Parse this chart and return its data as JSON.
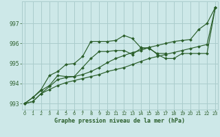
{
  "title": "Graphe pression niveau de la mer (hPa)",
  "background_color": "#cde8e8",
  "grid_color": "#aacccc",
  "line_color": "#2a5e2a",
  "marker_color": "#2a5e2a",
  "xlim": [
    -0.3,
    23.3
  ],
  "ylim": [
    992.7,
    998.1
  ],
  "yticks": [
    993,
    994,
    995,
    996,
    997
  ],
  "xticks": [
    0,
    1,
    2,
    3,
    4,
    5,
    6,
    7,
    8,
    9,
    10,
    11,
    12,
    13,
    14,
    15,
    16,
    17,
    18,
    19,
    20,
    21,
    22,
    23
  ],
  "series": [
    [
      993.0,
      993.3,
      993.7,
      994.4,
      994.6,
      994.95,
      995.0,
      995.35,
      996.1,
      996.1,
      996.1,
      996.15,
      996.4,
      996.25,
      995.8,
      995.75,
      995.5,
      995.5,
      null,
      null,
      null,
      null,
      null,
      997.8
    ],
    [
      993.0,
      993.3,
      993.65,
      993.9,
      994.4,
      994.35,
      994.35,
      994.8,
      995.25,
      995.6,
      995.6,
      995.65,
      995.65,
      995.45,
      995.75,
      995.8,
      995.45,
      995.25,
      995.25,
      995.5,
      995.5,
      995.5,
      995.5,
      997.8
    ],
    [
      993.0,
      993.1,
      993.5,
      993.85,
      994.2,
      994.3,
      994.35,
      994.45,
      994.6,
      994.8,
      995.05,
      995.25,
      995.4,
      995.55,
      995.65,
      995.8,
      995.9,
      996.0,
      996.1,
      996.15,
      996.2,
      996.7,
      997.0,
      997.8
    ],
    [
      993.0,
      993.1,
      993.5,
      993.7,
      993.9,
      994.05,
      994.15,
      994.25,
      994.35,
      994.45,
      994.6,
      994.7,
      994.8,
      994.95,
      995.1,
      995.25,
      995.35,
      995.45,
      995.55,
      995.65,
      995.75,
      995.85,
      995.95,
      997.8
    ]
  ],
  "markers_x": [
    [
      0,
      1,
      2,
      3,
      4,
      5,
      6,
      7,
      8,
      9,
      10,
      11,
      12,
      13,
      14,
      15,
      16,
      17
    ],
    [
      0,
      1,
      2,
      3,
      4,
      5,
      6,
      7,
      8,
      9,
      10,
      11,
      12,
      13,
      14,
      15,
      16,
      17,
      18,
      19,
      20,
      21,
      22,
      23
    ],
    [
      0,
      1,
      2,
      3,
      4,
      5,
      6,
      7,
      8,
      9,
      10,
      11,
      12,
      13,
      14,
      15,
      16,
      17,
      18,
      19,
      20,
      21,
      22,
      23
    ],
    [
      0,
      1,
      2,
      3,
      4,
      5,
      6,
      7,
      8,
      9,
      10,
      11,
      12,
      13,
      14,
      15,
      16,
      17,
      18,
      19,
      20,
      21,
      22,
      23
    ]
  ]
}
